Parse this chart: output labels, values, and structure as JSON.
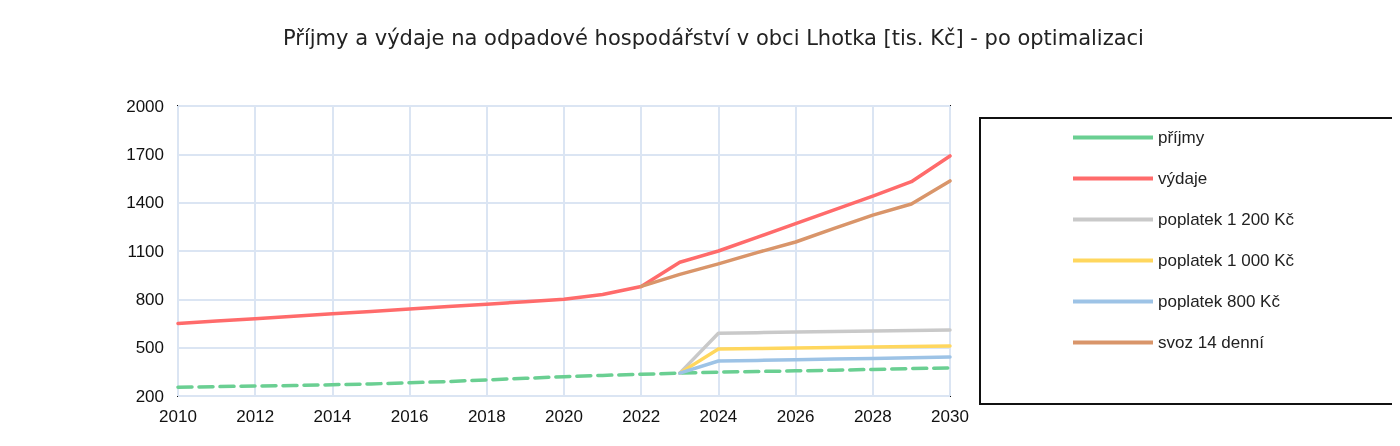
{
  "chart_data": {
    "type": "line",
    "title": "Příjmy a výdaje na odpadové hospodářství v obci Lhotka [tis. Kč] - po optimalizaci",
    "x": [
      2010,
      2011,
      2012,
      2013,
      2014,
      2015,
      2016,
      2017,
      2018,
      2019,
      2020,
      2021,
      2022,
      2023,
      2024,
      2025,
      2026,
      2027,
      2028,
      2029,
      2030
    ],
    "series": [
      {
        "name": "příjmy",
        "color": "#6acf92",
        "line_style": "dashed",
        "values": [
          255,
          258,
          262,
          265,
          270,
          275,
          282,
          290,
          300,
          310,
          320,
          328,
          335,
          342,
          348,
          352,
          356,
          360,
          365,
          370,
          374
        ]
      },
      {
        "name": "výdaje",
        "color": "#ff6b6b",
        "values": [
          650,
          665,
          680,
          695,
          710,
          725,
          740,
          755,
          770,
          785,
          800,
          830,
          880,
          1030,
          1100,
          1185,
          1270,
          1355,
          1440,
          1530,
          1690
        ]
      },
      {
        "name": "poplatek 1 200 Kč",
        "color": "#c9c9c9",
        "values": [
          null,
          null,
          null,
          null,
          null,
          null,
          null,
          null,
          null,
          null,
          null,
          null,
          null,
          342,
          590,
          593,
          597,
          600,
          603,
          606,
          610
        ]
      },
      {
        "name": "poplatek 1 000 Kč",
        "color": "#ffd75e",
        "values": [
          null,
          null,
          null,
          null,
          null,
          null,
          null,
          null,
          null,
          null,
          null,
          null,
          null,
          342,
          492,
          495,
          498,
          501,
          504,
          507,
          510
        ]
      },
      {
        "name": "poplatek 800 Kč",
        "color": "#9dc3e6",
        "values": [
          null,
          null,
          null,
          null,
          null,
          null,
          null,
          null,
          null,
          null,
          null,
          null,
          null,
          342,
          417,
          421,
          425,
          429,
          433,
          437,
          442
        ]
      },
      {
        "name": "svoz 14 denní",
        "color": "#d9956a",
        "values": [
          null,
          null,
          null,
          null,
          null,
          null,
          null,
          null,
          null,
          null,
          null,
          null,
          880,
          955,
          1020,
          1090,
          1156,
          1240,
          1323,
          1392,
          1535
        ]
      }
    ],
    "xlim": [
      2010,
      2030
    ],
    "xticks": [
      2010,
      2012,
      2014,
      2016,
      2018,
      2020,
      2022,
      2024,
      2026,
      2028,
      2030
    ],
    "ylim": [
      200,
      2000
    ],
    "yticks": [
      200,
      500,
      800,
      1100,
      1400,
      1700,
      2000
    ],
    "grid": true,
    "legend": "right",
    "marker": "none",
    "line_style": "solid"
  }
}
